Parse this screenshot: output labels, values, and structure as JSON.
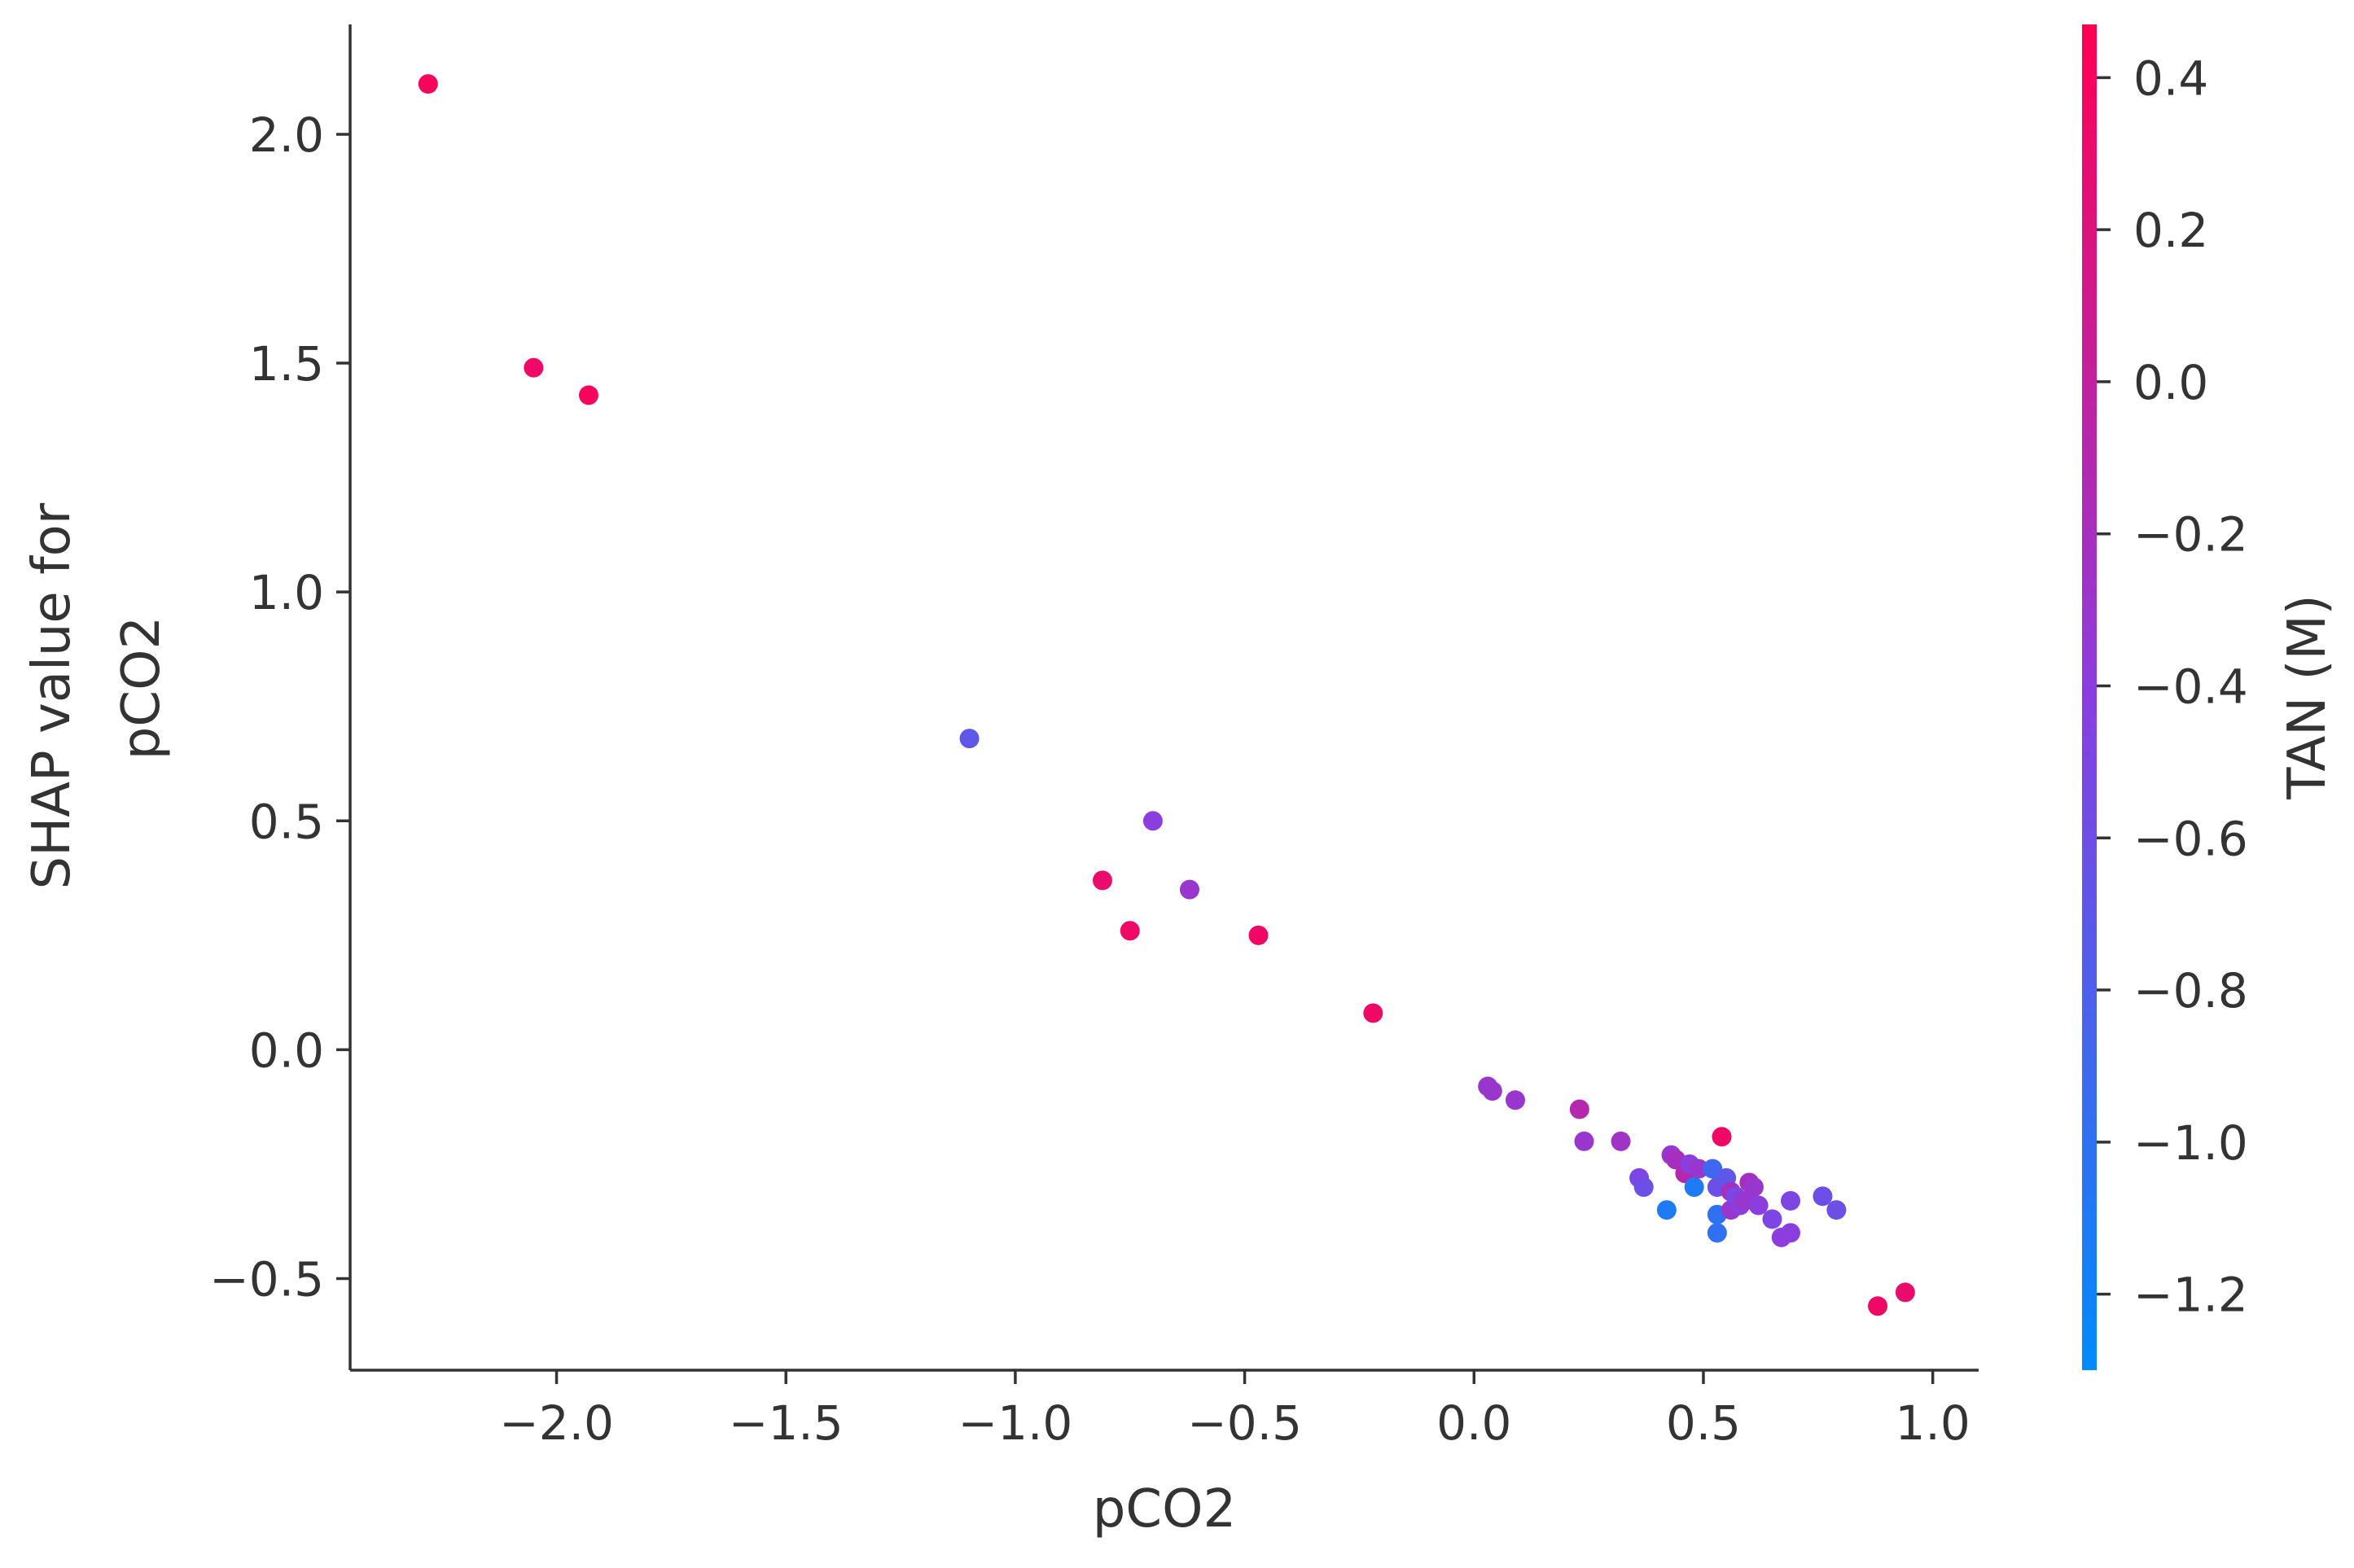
{
  "chart_data": {
    "type": "scatter",
    "xlabel": "pCO2",
    "ylabel_lines": [
      "SHAP value for",
      "pCO2"
    ],
    "xlim": [
      -2.45,
      1.1
    ],
    "ylim": [
      -0.7,
      2.24
    ],
    "x_ticks": [
      -2.0,
      -1.5,
      -1.0,
      -0.5,
      0.0,
      0.5,
      1.0
    ],
    "x_tick_labels": [
      "−2.0",
      "−1.5",
      "−1.0",
      "−0.5",
      "0.0",
      "0.5",
      "1.0"
    ],
    "y_ticks": [
      -0.5,
      0.0,
      0.5,
      1.0,
      1.5,
      2.0
    ],
    "y_tick_labels": [
      "−0.5",
      "0.0",
      "0.5",
      "1.0",
      "1.5",
      "2.0"
    ],
    "grid": false,
    "colorbar": {
      "label": "TAN (M)",
      "range": [
        -1.3,
        0.47
      ],
      "ticks": [
        -1.2,
        -1.0,
        -0.8,
        -0.6,
        -0.4,
        -0.2,
        0.0,
        0.2,
        0.4
      ],
      "tick_labels": [
        "−1.2",
        "−1.0",
        "−0.8",
        "−0.6",
        "−0.4",
        "−0.2",
        "0.0",
        "0.2",
        "0.4"
      ],
      "colormap": [
        "#008bfb",
        "#ff0052"
      ]
    },
    "points": [
      {
        "x": -2.28,
        "y": 2.11,
        "c": 0.4
      },
      {
        "x": -2.05,
        "y": 1.49,
        "c": 0.35
      },
      {
        "x": -1.93,
        "y": 1.43,
        "c": 0.4
      },
      {
        "x": -1.1,
        "y": 0.68,
        "c": -0.7
      },
      {
        "x": -0.7,
        "y": 0.5,
        "c": -0.4
      },
      {
        "x": -0.81,
        "y": 0.37,
        "c": 0.3
      },
      {
        "x": -0.62,
        "y": 0.35,
        "c": -0.3
      },
      {
        "x": -0.75,
        "y": 0.26,
        "c": 0.35
      },
      {
        "x": -0.47,
        "y": 0.25,
        "c": 0.35
      },
      {
        "x": -0.22,
        "y": 0.08,
        "c": 0.35
      },
      {
        "x": 0.03,
        "y": -0.08,
        "c": -0.3
      },
      {
        "x": 0.04,
        "y": -0.09,
        "c": -0.3
      },
      {
        "x": 0.09,
        "y": -0.11,
        "c": -0.3
      },
      {
        "x": 0.23,
        "y": -0.13,
        "c": -0.1
      },
      {
        "x": 0.24,
        "y": -0.2,
        "c": -0.3
      },
      {
        "x": 0.32,
        "y": -0.2,
        "c": -0.25
      },
      {
        "x": 0.36,
        "y": -0.28,
        "c": -0.5
      },
      {
        "x": 0.37,
        "y": -0.3,
        "c": -0.6
      },
      {
        "x": 0.42,
        "y": -0.35,
        "c": -1.1
      },
      {
        "x": 0.43,
        "y": -0.23,
        "c": -0.3
      },
      {
        "x": 0.44,
        "y": -0.24,
        "c": -0.2
      },
      {
        "x": 0.46,
        "y": -0.27,
        "c": -0.1
      },
      {
        "x": 0.47,
        "y": -0.25,
        "c": -0.4
      },
      {
        "x": 0.48,
        "y": -0.3,
        "c": -1.1
      },
      {
        "x": 0.49,
        "y": -0.26,
        "c": -0.3
      },
      {
        "x": 0.52,
        "y": -0.26,
        "c": -0.9
      },
      {
        "x": 0.53,
        "y": -0.3,
        "c": -0.6
      },
      {
        "x": 0.53,
        "y": -0.36,
        "c": -1.0
      },
      {
        "x": 0.53,
        "y": -0.4,
        "c": -1.0
      },
      {
        "x": 0.54,
        "y": -0.19,
        "c": 0.35
      },
      {
        "x": 0.55,
        "y": -0.28,
        "c": -0.7
      },
      {
        "x": 0.56,
        "y": -0.31,
        "c": -0.2
      },
      {
        "x": 0.56,
        "y": -0.35,
        "c": -0.3
      },
      {
        "x": 0.57,
        "y": -0.32,
        "c": -0.5
      },
      {
        "x": 0.58,
        "y": -0.34,
        "c": -0.4
      },
      {
        "x": 0.59,
        "y": -0.33,
        "c": -0.3
      },
      {
        "x": 0.6,
        "y": -0.29,
        "c": -0.2
      },
      {
        "x": 0.61,
        "y": -0.3,
        "c": -0.3
      },
      {
        "x": 0.62,
        "y": -0.34,
        "c": -0.4
      },
      {
        "x": 0.65,
        "y": -0.37,
        "c": -0.5
      },
      {
        "x": 0.67,
        "y": -0.41,
        "c": -0.4
      },
      {
        "x": 0.69,
        "y": -0.4,
        "c": -0.4
      },
      {
        "x": 0.69,
        "y": -0.33,
        "c": -0.5
      },
      {
        "x": 0.76,
        "y": -0.32,
        "c": -0.6
      },
      {
        "x": 0.79,
        "y": -0.35,
        "c": -0.6
      },
      {
        "x": 0.88,
        "y": -0.56,
        "c": 0.35
      },
      {
        "x": 0.94,
        "y": -0.53,
        "c": 0.3
      }
    ]
  }
}
